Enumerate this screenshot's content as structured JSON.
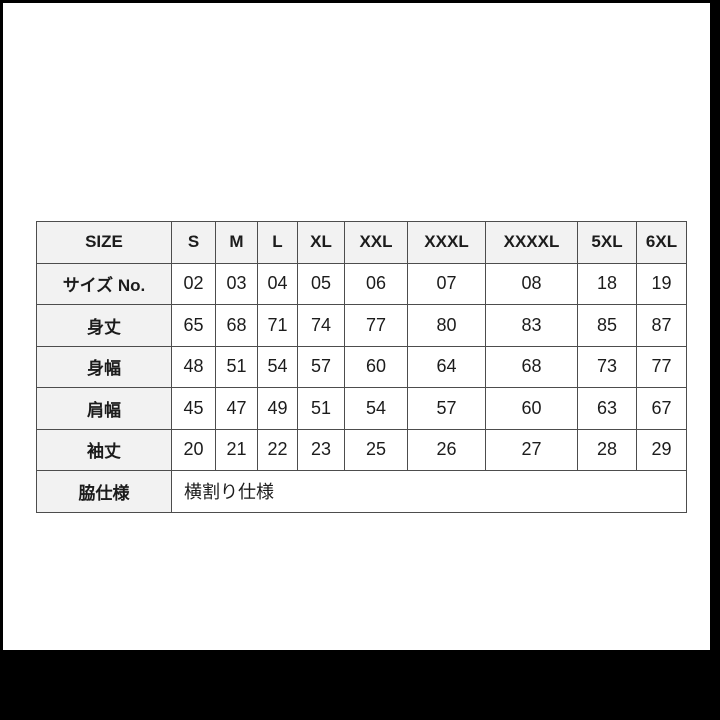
{
  "image": {
    "outer_background": "#000000",
    "photo_background": "#ffffff"
  },
  "chart_data": {
    "type": "table",
    "title": "",
    "corner_label": "SIZE",
    "columns": [
      "S",
      "M",
      "L",
      "XL",
      "XXL",
      "XXXL",
      "XXXXL",
      "5XL",
      "6XL"
    ],
    "rows": [
      {
        "label": "サイズ No.",
        "values": [
          "02",
          "03",
          "04",
          "05",
          "06",
          "07",
          "08",
          "18",
          "19"
        ]
      },
      {
        "label": "身丈",
        "values": [
          "65",
          "68",
          "71",
          "74",
          "77",
          "80",
          "83",
          "85",
          "87"
        ]
      },
      {
        "label": "身幅",
        "values": [
          "48",
          "51",
          "54",
          "57",
          "60",
          "64",
          "68",
          "73",
          "77"
        ]
      },
      {
        "label": "肩幅",
        "values": [
          "45",
          "47",
          "49",
          "51",
          "54",
          "57",
          "60",
          "63",
          "67"
        ]
      },
      {
        "label": "袖丈",
        "values": [
          "20",
          "21",
          "22",
          "23",
          "25",
          "26",
          "27",
          "28",
          "29"
        ]
      },
      {
        "label": "脇仕様",
        "span_value": "横割り仕様"
      }
    ],
    "colors": {
      "header_bg": "#f2f2f2",
      "cell_bg": "#ffffff",
      "border": "#4d4d4d",
      "text": "#1c1c1c"
    },
    "layout_hints": {
      "grid": true,
      "label_column_bold": true,
      "last_row_spans_all_value_columns": true
    }
  }
}
